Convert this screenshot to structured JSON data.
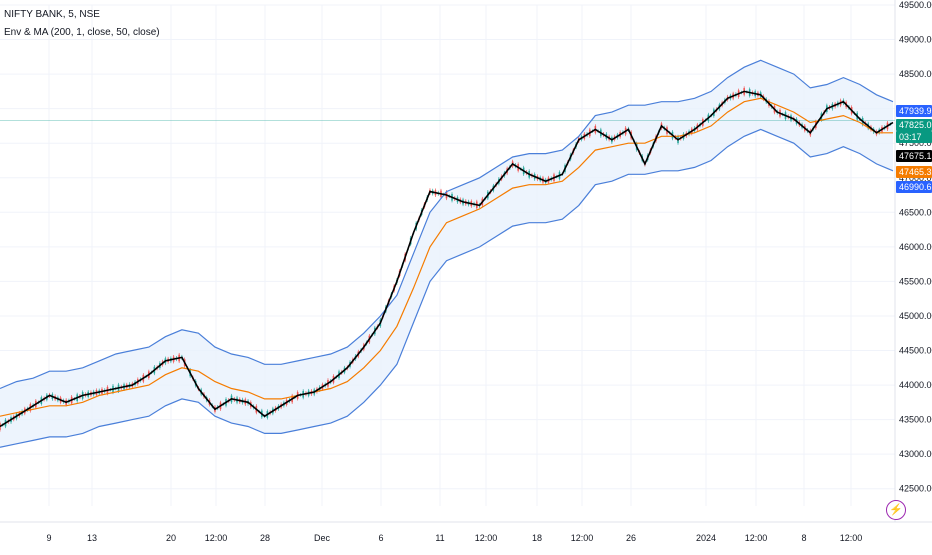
{
  "header": {
    "symbol": "NIFTY BANK, 5, NSE",
    "indicator": "Env & MA (200, 1, close, 50, close)"
  },
  "colors": {
    "price": "#000000",
    "ma": "#f57c00",
    "envelope": "#4a7fd9",
    "band_fill": "#e9f1fd",
    "candle_up": "#26a69a",
    "candle_down": "#ef5350",
    "tag_upper": "#2962ff",
    "tag_price": "#089981",
    "tag_ma_fast": "#000000",
    "tag_ma": "#f57c00",
    "tag_lower": "#2962ff"
  },
  "icons": {
    "alert": "lightning-icon"
  },
  "chart_data": {
    "type": "line",
    "y_range": [
      42250,
      49500
    ],
    "y_ticks": [
      "49500.00",
      "49000.00",
      "48500.00",
      "48000.00",
      "47500.00",
      "47000.00",
      "46500.00",
      "46000.00",
      "45500.00",
      "45000.00",
      "44500.00",
      "44000.00",
      "43500.00",
      "43000.00",
      "42500.00"
    ],
    "x_ticks": [
      "9",
      "13",
      "20",
      "12:00",
      "28",
      "Dec",
      "6",
      "11",
      "12:00",
      "18",
      "12:00",
      "26",
      "2024",
      "12:00",
      "8",
      "12:00"
    ],
    "price_tags": [
      "47939.97",
      "47825.05",
      "03:17",
      "47675.15",
      "47465.32",
      "46990.66"
    ],
    "series": [
      {
        "values": [
          43400,
          43550,
          43700,
          43850,
          43750,
          43850,
          43900,
          43950,
          44000,
          44150,
          44350,
          44400,
          43950,
          43650,
          43800,
          43750,
          43550,
          43700,
          43850,
          43900,
          44050,
          44250,
          44550,
          44900,
          45500,
          46200,
          46800,
          46750,
          46650,
          46600,
          46900,
          47200,
          47050,
          46950,
          47050,
          47550,
          47700,
          47550,
          47700,
          47200,
          47750,
          47550,
          47700,
          47900,
          48150,
          48250,
          48200,
          47950,
          47850,
          47650,
          48000,
          48100,
          47850,
          47650,
          47800
        ]
      },
      {
        "values": [
          43550,
          43600,
          43650,
          43700,
          43700,
          43750,
          43850,
          43900,
          43950,
          44000,
          44150,
          44250,
          44200,
          44050,
          43950,
          43900,
          43800,
          43800,
          43850,
          43900,
          43950,
          44050,
          44250,
          44500,
          44850,
          45400,
          46000,
          46350,
          46450,
          46550,
          46700,
          46850,
          46900,
          46900,
          46950,
          47150,
          47400,
          47450,
          47500,
          47500,
          47600,
          47600,
          47650,
          47750,
          47950,
          48100,
          48150,
          48050,
          47950,
          47800,
          47850,
          47900,
          47800,
          47650,
          47650
        ]
      },
      {
        "values": [
          43950,
          44050,
          44100,
          44200,
          44200,
          44250,
          44350,
          44450,
          44500,
          44550,
          44700,
          44800,
          44750,
          44550,
          44450,
          44400,
          44300,
          44300,
          44350,
          44400,
          44450,
          44550,
          44750,
          45000,
          45300,
          45900,
          46500,
          46800,
          46900,
          47000,
          47150,
          47300,
          47350,
          47350,
          47400,
          47600,
          47900,
          47950,
          48050,
          48050,
          48100,
          48100,
          48150,
          48250,
          48450,
          48600,
          48700,
          48600,
          48500,
          48300,
          48350,
          48450,
          48350,
          48200,
          48100
        ]
      },
      {
        "values": [
          43100,
          43150,
          43200,
          43250,
          43250,
          43300,
          43400,
          43450,
          43500,
          43550,
          43700,
          43800,
          43750,
          43550,
          43450,
          43400,
          43300,
          43300,
          43350,
          43400,
          43450,
          43550,
          43750,
          44000,
          44300,
          44900,
          45500,
          45800,
          45900,
          46000,
          46150,
          46300,
          46350,
          46350,
          46400,
          46600,
          46900,
          46950,
          47050,
          47050,
          47100,
          47100,
          47150,
          47250,
          47450,
          47600,
          47700,
          47600,
          47500,
          47300,
          47350,
          47450,
          47350,
          47200,
          47100
        ]
      }
    ]
  }
}
